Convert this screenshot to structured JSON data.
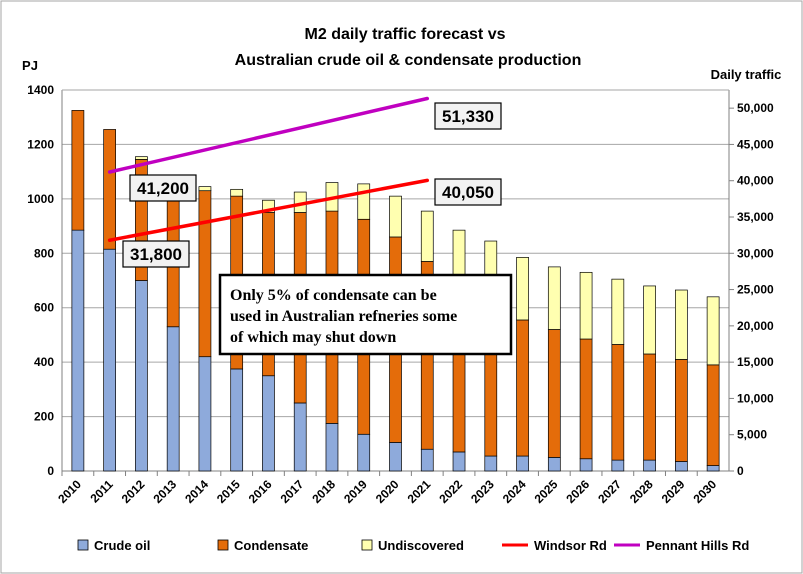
{
  "chart_data": {
    "type": "bar",
    "title_line1": "M2 daily traffic forecast vs",
    "title_line2": "Australian crude oil & condensate production",
    "ylabel_left": "PJ",
    "ylabel_right": "Daily traffic",
    "categories": [
      "2010",
      "2011",
      "2012",
      "2013",
      "2014",
      "2015",
      "2016",
      "2017",
      "2018",
      "2019",
      "2020",
      "2021",
      "2022",
      "2023",
      "2024",
      "2025",
      "2026",
      "2027",
      "2028",
      "2029",
      "2030"
    ],
    "ylim_left": [
      0,
      1400
    ],
    "yticks_left": [
      "0",
      "200",
      "400",
      "600",
      "800",
      "1000",
      "1200",
      "1400"
    ],
    "ylim_right": [
      0,
      52500
    ],
    "yticks_right": [
      "0",
      "5,000",
      "10,000",
      "15,000",
      "20,000",
      "25,000",
      "30,000",
      "35,000",
      "40,000",
      "45,000",
      "50,000"
    ],
    "grid": true,
    "series": [
      {
        "name": "Crude oil",
        "color": "#8eaadb",
        "values": [
          885,
          815,
          700,
          530,
          420,
          375,
          350,
          250,
          175,
          135,
          105,
          80,
          70,
          55,
          55,
          50,
          45,
          40,
          40,
          35,
          20
        ]
      },
      {
        "name": "Condensate",
        "color": "#e46c0a",
        "values": [
          440,
          440,
          445,
          465,
          610,
          635,
          600,
          700,
          780,
          790,
          755,
          690,
          520,
          545,
          500,
          470,
          440,
          425,
          390,
          375,
          370
        ]
      },
      {
        "name": "Undiscovered",
        "color": "#ffffb0",
        "values": [
          0,
          0,
          10,
          5,
          15,
          25,
          45,
          75,
          105,
          130,
          150,
          185,
          295,
          245,
          230,
          230,
          245,
          240,
          250,
          255,
          250
        ]
      }
    ],
    "lines": [
      {
        "name": "Windsor Rd",
        "color": "#ff0000",
        "axis": "right",
        "x": [
          "2011",
          "2021"
        ],
        "values": [
          31800,
          40050
        ]
      },
      {
        "name": "Pennant Hills Rd",
        "color": "#c000c0",
        "axis": "right",
        "x": [
          "2011",
          "2021"
        ],
        "values": [
          41200,
          51330
        ]
      }
    ],
    "data_labels": [
      {
        "text": "41,200",
        "series": "Pennant Hills Rd"
      },
      {
        "text": "31,800",
        "series": "Windsor Rd"
      },
      {
        "text": "51,330",
        "series": "Pennant Hills Rd"
      },
      {
        "text": "40,050",
        "series": "Windsor Rd"
      }
    ],
    "annotation_lines": [
      "Only 5% of condensate can be",
      "used in Australian refneries some",
      "of which may shut down"
    ],
    "legend_position": "bottom"
  }
}
